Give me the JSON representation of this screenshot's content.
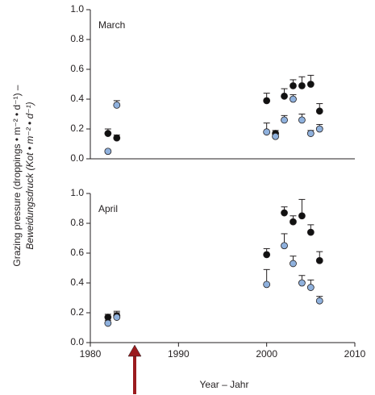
{
  "chart_data": [
    {
      "type": "scatter",
      "title": "March",
      "ylabel": "Grazing pressure (droppings • m⁻² • d⁻¹) –",
      "ylabel2": "Beweidungsdruck (Kot • m⁻² • d⁻¹)",
      "xlim": [
        1980,
        2010
      ],
      "ylim": [
        0,
        1
      ],
      "yticks": [
        {
          "value": 0,
          "label": "0.0"
        },
        0.2,
        0.4,
        0.6,
        0.8,
        {
          "value": 1,
          "label": "1.0"
        }
      ],
      "series": [
        {
          "color": "#111111",
          "x": [
            1982,
            1983,
            2000,
            2001,
            2002,
            2003,
            2004,
            2005,
            2006
          ],
          "values": [
            0.17,
            0.14,
            0.39,
            0.17,
            0.42,
            0.49,
            0.49,
            0.5,
            0.32
          ],
          "errors": [
            0.03,
            0.02,
            0.05,
            0.02,
            0.05,
            0.04,
            0.06,
            0.06,
            0.05
          ]
        },
        {
          "color": "#8fb1dd",
          "x": [
            1982,
            1983,
            2000,
            2001,
            2002,
            2003,
            2004,
            2005,
            2006
          ],
          "values": [
            0.05,
            0.36,
            0.18,
            0.15,
            0.26,
            0.4,
            0.26,
            0.17,
            0.2
          ],
          "errors": [
            0,
            0.03,
            0.06,
            0.02,
            0.03,
            0.03,
            0.04,
            0.02,
            0.03
          ]
        }
      ]
    },
    {
      "type": "scatter",
      "title": "April",
      "xlabel": "Year – Jahr",
      "xlim": [
        1980,
        2010
      ],
      "xticks": [
        1980,
        1990,
        2000,
        2010
      ],
      "ylim": [
        0,
        1
      ],
      "yticks": [
        {
          "value": 0,
          "label": "0.0"
        },
        0.2,
        0.4,
        0.6,
        0.8,
        {
          "value": 1,
          "label": "1.0"
        }
      ],
      "series": [
        {
          "color": "#111111",
          "x": [
            1982,
            1983,
            2000,
            2002,
            2003,
            2004,
            2005,
            2006
          ],
          "values": [
            0.17,
            0.18,
            0.59,
            0.87,
            0.81,
            0.85,
            0.74,
            0.55
          ],
          "errors": [
            0.02,
            0.02,
            0.04,
            0.04,
            0.04,
            0.11,
            0.05,
            0.06
          ]
        },
        {
          "color": "#8fb1dd",
          "x": [
            1982,
            1983,
            2000,
            2002,
            2003,
            2004,
            2005,
            2006
          ],
          "values": [
            0.13,
            0.17,
            0.39,
            0.65,
            0.53,
            0.4,
            0.37,
            0.28
          ],
          "errors": [
            0.02,
            0.04,
            0.1,
            0.08,
            0.05,
            0.05,
            0.05,
            0.03
          ]
        }
      ]
    }
  ]
}
